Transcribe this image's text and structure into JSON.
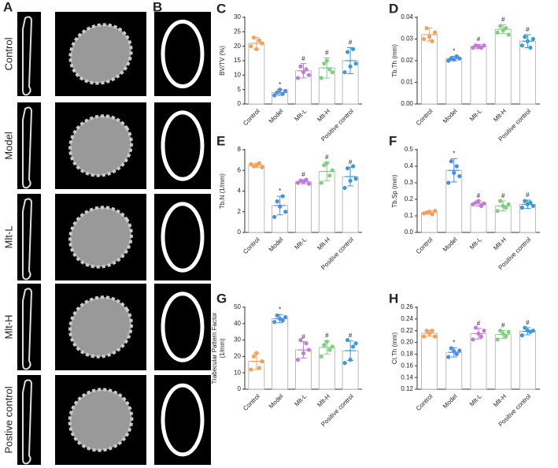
{
  "figure": {
    "panel_a": "A",
    "panel_b": "B",
    "row_labels": [
      "Control",
      "Model",
      "Mlt-L",
      "Mlt-H",
      "Postive control"
    ]
  },
  "chart_data": [
    {
      "type": "bar",
      "panel": "C",
      "ylabel": [
        "BV/TV (%)"
      ],
      "categories": [
        "Control",
        "Model",
        "Mlt-L",
        "Mlt-H",
        "Positive control"
      ],
      "colors": [
        "#f5a05a",
        "#4a8fe0",
        "#c47ad8",
        "#7fcf7f",
        "#3b9ad6"
      ],
      "values": [
        21,
        4,
        11.5,
        12.5,
        15
      ],
      "errors": [
        2,
        1,
        2.5,
        3.5,
        4.5
      ],
      "annotations": [
        null,
        "*",
        "#",
        "#",
        "#"
      ],
      "points": [
        [
          20,
          23,
          19,
          22,
          21
        ],
        [
          3,
          4,
          5,
          3.5,
          4.5
        ],
        [
          9,
          13,
          11,
          12,
          10
        ],
        [
          9,
          14,
          15,
          12,
          11
        ],
        [
          11,
          18,
          13,
          19,
          14
        ]
      ],
      "ylim": [
        0,
        30
      ],
      "yticks": [
        0,
        5,
        10,
        15,
        20,
        25,
        30
      ]
    },
    {
      "type": "bar",
      "panel": "D",
      "ylabel": [
        "Tb.Th (mm)"
      ],
      "categories": [
        "Control",
        "Model",
        "Mlt-L",
        "Mlt-H",
        "Positive control"
      ],
      "colors": [
        "#f5a05a",
        "#4a8fe0",
        "#c47ad8",
        "#7fcf7f",
        "#3b9ad6"
      ],
      "values": [
        0.032,
        0.021,
        0.0265,
        0.0345,
        0.029
      ],
      "errors": [
        0.003,
        0.001,
        0.001,
        0.002,
        0.003
      ],
      "annotations": [
        null,
        "*",
        "#",
        "#",
        "#"
      ],
      "points": [
        [
          0.03,
          0.035,
          0.031,
          0.029,
          0.033
        ],
        [
          0.02,
          0.021,
          0.0205,
          0.022,
          0.021
        ],
        [
          0.026,
          0.027,
          0.0265,
          0.026,
          0.027
        ],
        [
          0.033,
          0.036,
          0.034,
          0.035,
          0.032
        ],
        [
          0.027,
          0.031,
          0.029,
          0.026,
          0.03
        ]
      ],
      "ylim": [
        0,
        0.04
      ],
      "yticks": [
        {
          "value": 0,
          "label": "0.00"
        },
        {
          "value": 0.01,
          "label": "0.01"
        },
        {
          "value": 0.02,
          "label": "0.02"
        },
        {
          "value": 0.03,
          "label": "0.03"
        },
        {
          "value": 0.04,
          "label": "0.04"
        }
      ]
    },
    {
      "type": "bar",
      "panel": "E",
      "ylabel": [
        "Tb.N (1/mm)"
      ],
      "categories": [
        "Control",
        "Model",
        "Mlt-L",
        "Mlt-H",
        "Positive control"
      ],
      "colors": [
        "#f5a05a",
        "#4a8fe0",
        "#c47ad8",
        "#7fcf7f",
        "#3b9ad6"
      ],
      "values": [
        6.5,
        2.6,
        4.9,
        5.9,
        5.4
      ],
      "errors": [
        0.2,
        0.9,
        0.2,
        0.9,
        0.9
      ],
      "annotations": [
        null,
        "*",
        "#",
        "#",
        "#"
      ],
      "points": [
        [
          6.6,
          6.4,
          6.5,
          6.7,
          6.3
        ],
        [
          1.5,
          3,
          2.5,
          3.5,
          2
        ],
        [
          4.8,
          5,
          4.9,
          5.1,
          4.7
        ],
        [
          4.8,
          6.5,
          6.7,
          5.5,
          6
        ],
        [
          4.3,
          6.2,
          5,
          6.4,
          5.2
        ]
      ],
      "ylim": [
        0,
        8
      ],
      "yticks": [
        0,
        2,
        4,
        6,
        8
      ]
    },
    {
      "type": "bar",
      "panel": "F",
      "ylabel": [
        "Tb.Sp (mm)"
      ],
      "categories": [
        "Control",
        "Model",
        "Mlt-L",
        "Mlt-H",
        "Positive control"
      ],
      "colors": [
        "#f5a05a",
        "#4a8fe0",
        "#c47ad8",
        "#7fcf7f",
        "#3b9ad6"
      ],
      "values": [
        0.12,
        0.375,
        0.175,
        0.16,
        0.17
      ],
      "errors": [
        0.01,
        0.07,
        0.015,
        0.03,
        0.025
      ],
      "annotations": [
        null,
        "*",
        "#",
        "#",
        "#"
      ],
      "points": [
        [
          0.115,
          0.12,
          0.125,
          0.11,
          0.13
        ],
        [
          0.3,
          0.43,
          0.36,
          0.4,
          0.34
        ],
        [
          0.17,
          0.18,
          0.19,
          0.16,
          0.175
        ],
        [
          0.13,
          0.19,
          0.16,
          0.15,
          0.17
        ],
        [
          0.15,
          0.19,
          0.17,
          0.18,
          0.16
        ]
      ],
      "ylim": [
        0,
        0.5
      ],
      "yticks": [
        {
          "value": 0,
          "label": "0.0"
        },
        0.1,
        0.2,
        0.3,
        0.4,
        0.5
      ]
    },
    {
      "type": "bar",
      "panel": "G",
      "ylabel": [
        "Trabecular Pattern Factor",
        "(1/mm)"
      ],
      "categories": [
        "Control",
        "Model",
        "Mlt-L",
        "Mlt-H",
        "Positive control"
      ],
      "colors": [
        "#f5a05a",
        "#4a8fe0",
        "#c47ad8",
        "#7fcf7f",
        "#3b9ad6"
      ],
      "values": [
        17,
        43,
        24,
        25.5,
        23.5
      ],
      "errors": [
        5,
        2.5,
        5,
        4,
        6
      ],
      "annotations": [
        null,
        "*",
        "#",
        "#",
        "#"
      ],
      "points": [
        [
          12,
          20,
          22,
          13,
          17
        ],
        [
          41,
          45,
          43,
          42,
          44
        ],
        [
          18,
          30,
          22,
          28,
          24
        ],
        [
          20,
          27,
          29,
          24,
          26
        ],
        [
          16,
          30,
          18,
          26,
          28
        ]
      ],
      "ylim": [
        0,
        50
      ],
      "yticks": [
        0,
        10,
        20,
        30,
        40,
        50
      ]
    },
    {
      "type": "bar",
      "panel": "H",
      "ylabel": [
        "Ct.Th (mm)"
      ],
      "categories": [
        "Control",
        "Model",
        "Mlt-L",
        "Mlt-H",
        "Positive control"
      ],
      "colors": [
        "#f5a05a",
        "#4a8fe0",
        "#c47ad8",
        "#7fcf7f",
        "#3b9ad6"
      ],
      "values": [
        0.2155,
        0.183,
        0.215,
        0.2135,
        0.219
      ],
      "errors": [
        0.005,
        0.008,
        0.009,
        0.007,
        0.006
      ],
      "annotations": [
        null,
        "*",
        "#",
        "#",
        "#"
      ],
      "points": [
        [
          0.21,
          0.22,
          0.215,
          0.22,
          0.21
        ],
        [
          0.175,
          0.19,
          0.185,
          0.18,
          0.186
        ],
        [
          0.205,
          0.225,
          0.215,
          0.21,
          0.22
        ],
        [
          0.205,
          0.22,
          0.215,
          0.21,
          0.218
        ],
        [
          0.212,
          0.225,
          0.22,
          0.218,
          0.22
        ]
      ],
      "ylim": [
        0.12,
        0.26
      ],
      "yticks": [
        0.12,
        0.14,
        0.16,
        0.18,
        {
          "value": 0.2,
          "label": "0.20"
        },
        0.22,
        0.24,
        0.26
      ]
    }
  ]
}
